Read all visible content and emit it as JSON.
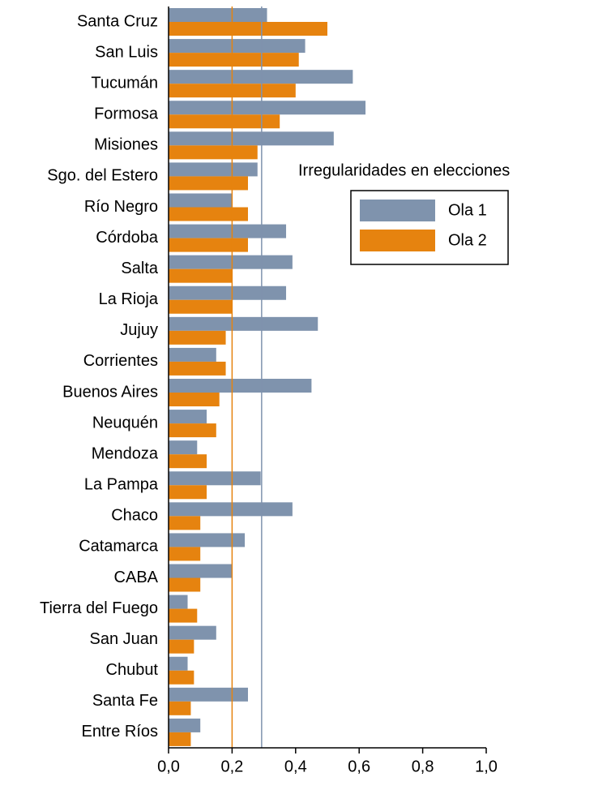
{
  "chart_data": {
    "type": "barh",
    "legend_title": "Irregularidades en elecciones",
    "categories": [
      "Santa Cruz",
      "San Luis",
      "Tucumán",
      "Formosa",
      "Misiones",
      "Sgo. del Estero",
      "Río Negro",
      "Córdoba",
      "Salta",
      "La Rioja",
      "Jujuy",
      "Corrientes",
      "Buenos Aires",
      "Neuquén",
      "Mendoza",
      "La Pampa",
      "Chaco",
      "Catamarca",
      "CABA",
      "Tierra del Fuego",
      "San Juan",
      "Chubut",
      "Santa Fe",
      "Entre Ríos"
    ],
    "series": [
      {
        "name": "Ola 1",
        "color": "#7f93ad",
        "values": [
          0.31,
          0.43,
          0.58,
          0.62,
          0.52,
          0.28,
          0.2,
          0.37,
          0.39,
          0.37,
          0.47,
          0.15,
          0.45,
          0.12,
          0.09,
          0.29,
          0.39,
          0.24,
          0.2,
          0.06,
          0.15,
          0.06,
          0.25,
          0.1
        ]
      },
      {
        "name": "Ola 2",
        "color": "#e6830f",
        "values": [
          0.5,
          0.41,
          0.4,
          0.35,
          0.28,
          0.25,
          0.25,
          0.25,
          0.2,
          0.2,
          0.18,
          0.18,
          0.16,
          0.15,
          0.12,
          0.12,
          0.1,
          0.1,
          0.1,
          0.09,
          0.08,
          0.08,
          0.07,
          0.07
        ]
      }
    ],
    "reference_lines": [
      {
        "value": 0.2,
        "color": "#e6830f"
      },
      {
        "value": 0.293,
        "color": "#7f93ad"
      }
    ],
    "xlim": [
      0,
      1
    ],
    "xticks": [
      {
        "value": 0,
        "label": "0,0"
      },
      {
        "value": 0.2,
        "label": "0,2"
      },
      {
        "value": 0.4,
        "label": "0,4"
      },
      {
        "value": 0.6,
        "label": "0,6"
      },
      {
        "value": 0.8,
        "label": "0,8"
      },
      {
        "value": 1,
        "label": "1,0"
      }
    ],
    "legend_position": "upper right"
  }
}
